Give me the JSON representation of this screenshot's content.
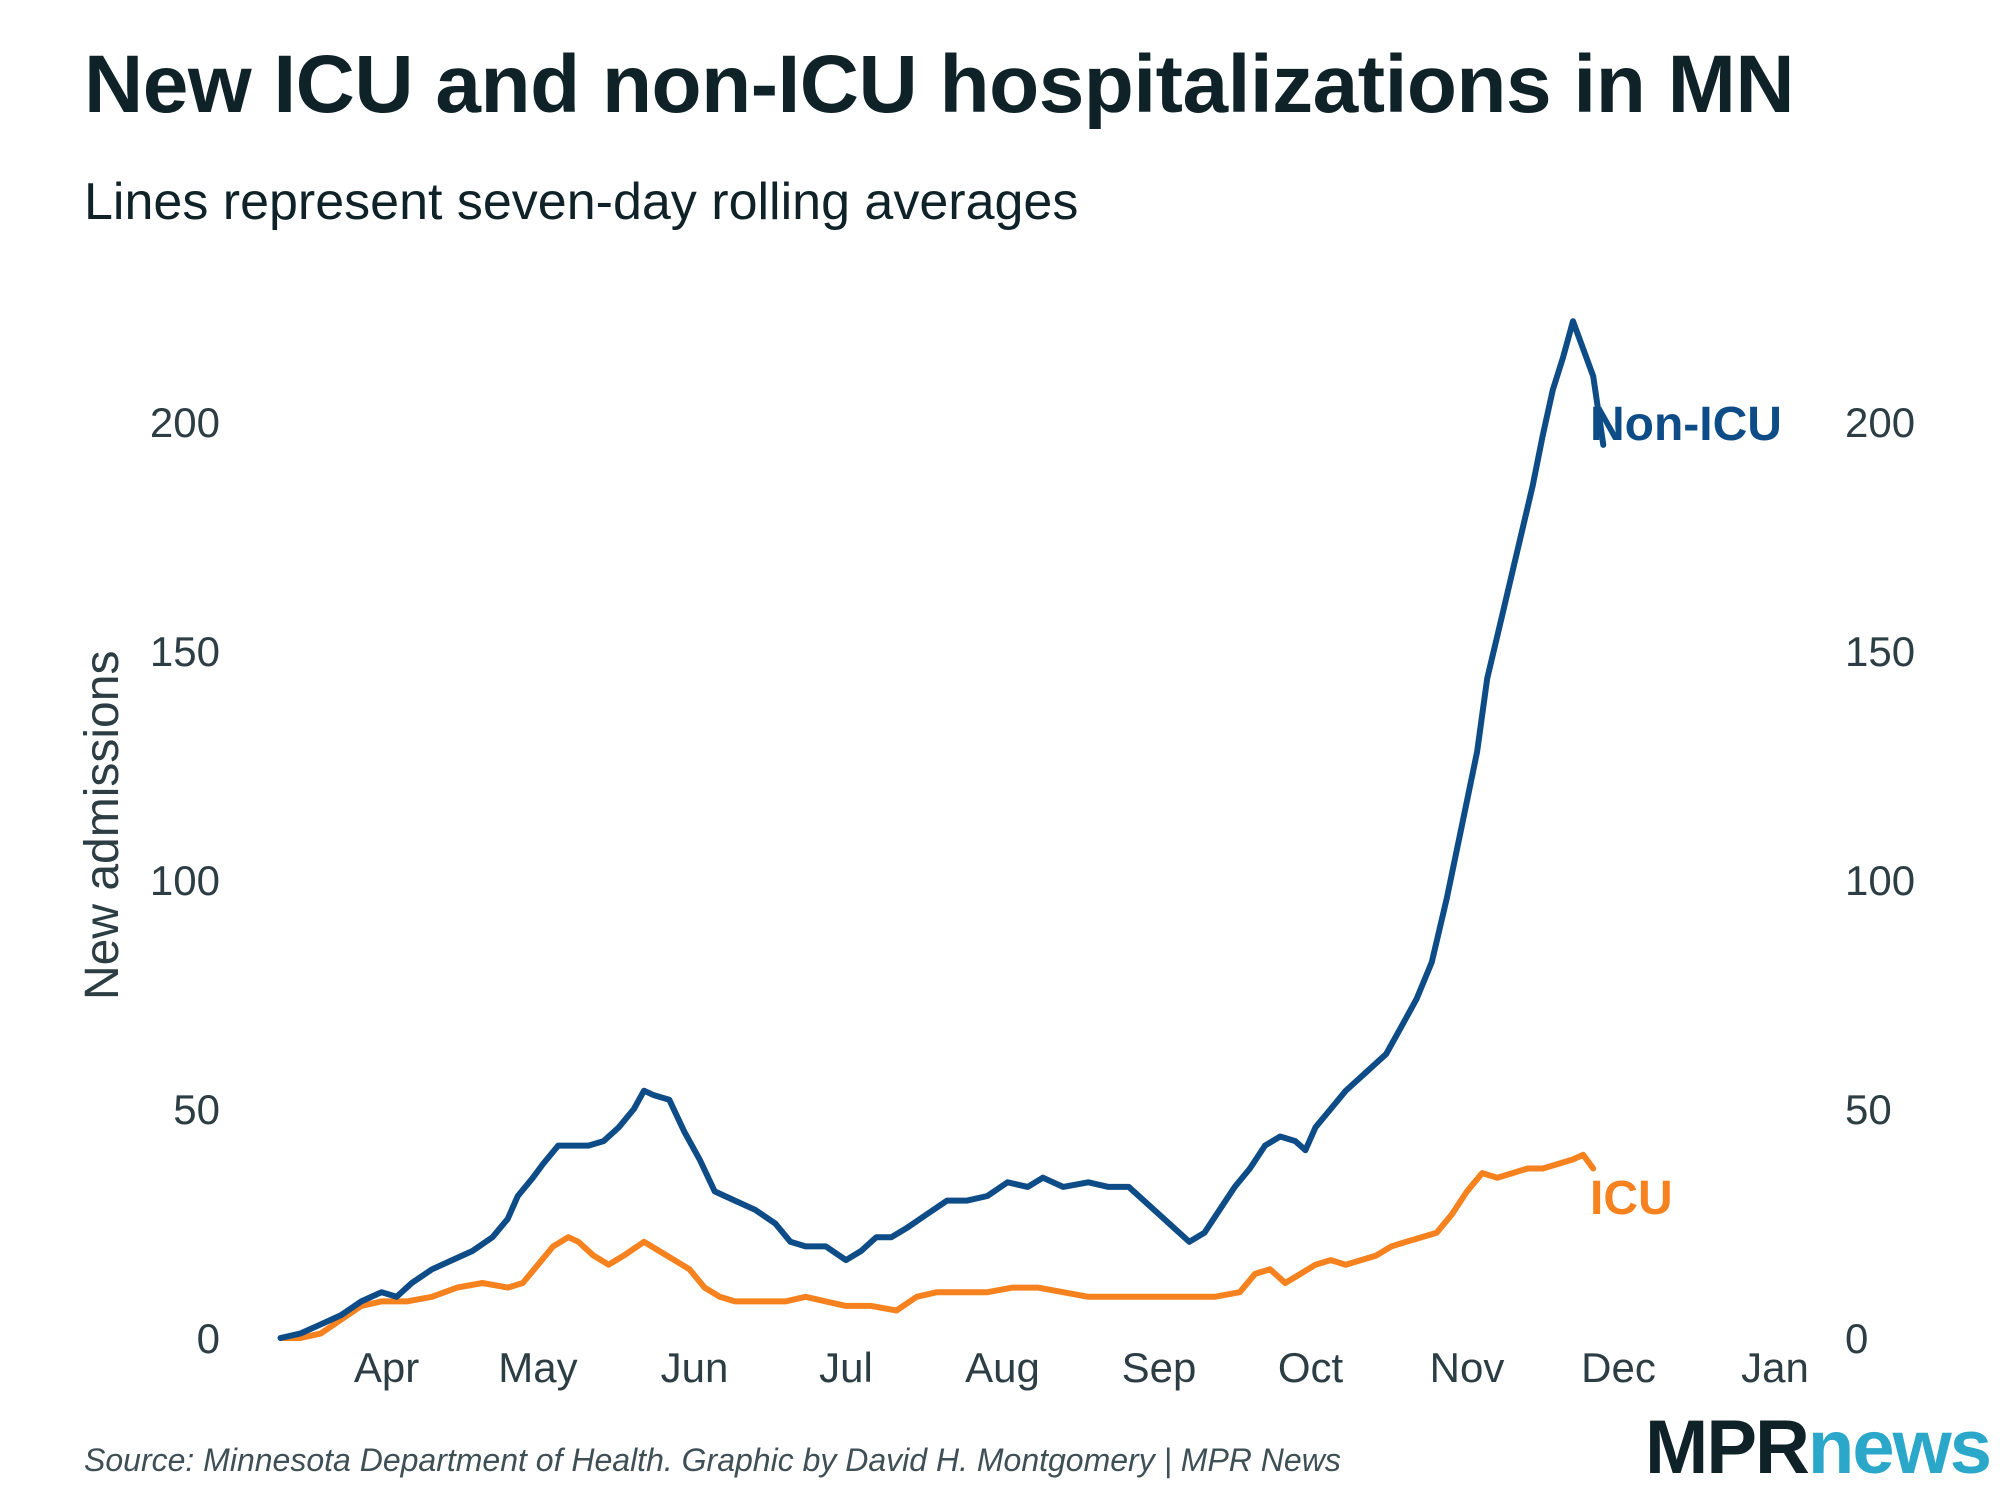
{
  "title": "New ICU and non-ICU hospitalizations in MN",
  "subtitle": "Lines represent seven-day rolling averages",
  "source": "Source: Minnesota Department of Health. Graphic by David H. Montgomery | MPR News",
  "logo": {
    "part1": "MPR",
    "part2": "news"
  },
  "colors": {
    "non_icu": "#0e4c87",
    "icu": "#f5821f",
    "text": "#0f2228",
    "logo_accent": "#2aa7c9"
  },
  "chart_data": {
    "type": "line",
    "title": "New ICU and non-ICU hospitalizations in MN",
    "subtitle": "Lines represent seven-day rolling averages",
    "xlabel": "",
    "ylabel": "New admissions",
    "x_unit": "days since Mar 1",
    "xlim": [
      0,
      306
    ],
    "ylim": [
      0,
      225
    ],
    "yticks": [
      0,
      50,
      100,
      150,
      200
    ],
    "y_axis_right": true,
    "grid": false,
    "x_ticks": [
      {
        "label": "Apr",
        "day": 31
      },
      {
        "label": "May",
        "day": 61
      },
      {
        "label": "Jun",
        "day": 92
      },
      {
        "label": "Jul",
        "day": 122
      },
      {
        "label": "Aug",
        "day": 153
      },
      {
        "label": "Sep",
        "day": 184
      },
      {
        "label": "Oct",
        "day": 214
      },
      {
        "label": "Nov",
        "day": 245
      },
      {
        "label": "Dec",
        "day": 275
      },
      {
        "label": "Jan",
        "day": 306
      }
    ],
    "series": [
      {
        "name": "Non-ICU",
        "color": "#0e4c87",
        "points": [
          [
            10,
            0
          ],
          [
            14,
            1
          ],
          [
            18,
            3
          ],
          [
            22,
            5
          ],
          [
            26,
            8
          ],
          [
            30,
            10
          ],
          [
            33,
            9
          ],
          [
            36,
            12
          ],
          [
            40,
            15
          ],
          [
            44,
            17
          ],
          [
            48,
            19
          ],
          [
            52,
            22
          ],
          [
            55,
            26
          ],
          [
            57,
            31
          ],
          [
            60,
            35
          ],
          [
            62,
            38
          ],
          [
            65,
            42
          ],
          [
            68,
            42
          ],
          [
            71,
            42
          ],
          [
            74,
            43
          ],
          [
            77,
            46
          ],
          [
            80,
            50
          ],
          [
            82,
            54
          ],
          [
            84,
            53
          ],
          [
            87,
            52
          ],
          [
            90,
            45
          ],
          [
            93,
            39
          ],
          [
            96,
            32
          ],
          [
            100,
            30
          ],
          [
            104,
            28
          ],
          [
            108,
            25
          ],
          [
            111,
            21
          ],
          [
            114,
            20
          ],
          [
            118,
            20
          ],
          [
            122,
            17
          ],
          [
            125,
            19
          ],
          [
            128,
            22
          ],
          [
            131,
            22
          ],
          [
            134,
            24
          ],
          [
            138,
            27
          ],
          [
            142,
            30
          ],
          [
            146,
            30
          ],
          [
            150,
            31
          ],
          [
            154,
            34
          ],
          [
            158,
            33
          ],
          [
            161,
            35
          ],
          [
            165,
            33
          ],
          [
            170,
            34
          ],
          [
            174,
            33
          ],
          [
            178,
            33
          ],
          [
            181,
            30
          ],
          [
            184,
            27
          ],
          [
            187,
            24
          ],
          [
            190,
            21
          ],
          [
            193,
            23
          ],
          [
            196,
            28
          ],
          [
            199,
            33
          ],
          [
            202,
            37
          ],
          [
            205,
            42
          ],
          [
            208,
            44
          ],
          [
            211,
            43
          ],
          [
            213,
            41
          ],
          [
            215,
            46
          ],
          [
            218,
            50
          ],
          [
            221,
            54
          ],
          [
            225,
            58
          ],
          [
            229,
            62
          ],
          [
            232,
            68
          ],
          [
            235,
            74
          ],
          [
            238,
            82
          ],
          [
            241,
            96
          ],
          [
            244,
            112
          ],
          [
            247,
            128
          ],
          [
            249,
            144
          ],
          [
            252,
            158
          ],
          [
            255,
            172
          ],
          [
            258,
            186
          ],
          [
            260,
            197
          ],
          [
            262,
            207
          ],
          [
            264,
            214
          ],
          [
            266,
            222
          ],
          [
            268,
            216
          ],
          [
            270,
            210
          ],
          [
            272,
            195
          ]
        ]
      },
      {
        "name": "ICU",
        "color": "#f5821f",
        "points": [
          [
            10,
            0
          ],
          [
            14,
            0
          ],
          [
            18,
            1
          ],
          [
            22,
            4
          ],
          [
            26,
            7
          ],
          [
            30,
            8
          ],
          [
            35,
            8
          ],
          [
            40,
            9
          ],
          [
            45,
            11
          ],
          [
            50,
            12
          ],
          [
            55,
            11
          ],
          [
            58,
            12
          ],
          [
            61,
            16
          ],
          [
            64,
            20
          ],
          [
            67,
            22
          ],
          [
            69,
            21
          ],
          [
            72,
            18
          ],
          [
            75,
            16
          ],
          [
            78,
            18
          ],
          [
            82,
            21
          ],
          [
            85,
            19
          ],
          [
            88,
            17
          ],
          [
            91,
            15
          ],
          [
            94,
            11
          ],
          [
            97,
            9
          ],
          [
            100,
            8
          ],
          [
            105,
            8
          ],
          [
            110,
            8
          ],
          [
            114,
            9
          ],
          [
            118,
            8
          ],
          [
            122,
            7
          ],
          [
            127,
            7
          ],
          [
            132,
            6
          ],
          [
            136,
            9
          ],
          [
            140,
            10
          ],
          [
            145,
            10
          ],
          [
            150,
            10
          ],
          [
            155,
            11
          ],
          [
            160,
            11
          ],
          [
            165,
            10
          ],
          [
            170,
            9
          ],
          [
            175,
            9
          ],
          [
            180,
            9
          ],
          [
            185,
            9
          ],
          [
            190,
            9
          ],
          [
            195,
            9
          ],
          [
            200,
            10
          ],
          [
            203,
            14
          ],
          [
            206,
            15
          ],
          [
            209,
            12
          ],
          [
            212,
            14
          ],
          [
            215,
            16
          ],
          [
            218,
            17
          ],
          [
            221,
            16
          ],
          [
            224,
            17
          ],
          [
            227,
            18
          ],
          [
            230,
            20
          ],
          [
            233,
            21
          ],
          [
            236,
            22
          ],
          [
            239,
            23
          ],
          [
            242,
            27
          ],
          [
            245,
            32
          ],
          [
            248,
            36
          ],
          [
            251,
            35
          ],
          [
            254,
            36
          ],
          [
            257,
            37
          ],
          [
            260,
            37
          ],
          [
            263,
            38
          ],
          [
            266,
            39
          ],
          [
            268,
            40
          ],
          [
            270,
            37
          ]
        ]
      }
    ]
  }
}
